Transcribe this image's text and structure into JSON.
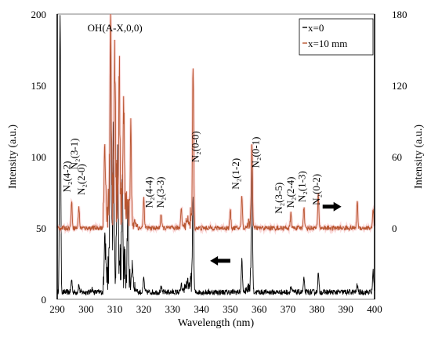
{
  "chart_data": {
    "type": "line",
    "xlabel": "Wavelength (nm)",
    "ylabel": "Intensity (a.u.)",
    "y2label": "Intensity (a.u.)",
    "xlim": [
      290,
      400
    ],
    "ylim": [
      0,
      200
    ],
    "y2lim": [
      -60,
      180
    ],
    "x_ticks": [
      290,
      300,
      310,
      320,
      330,
      340,
      350,
      360,
      370,
      380,
      390,
      400
    ],
    "y_ticks": [
      0,
      50,
      100,
      150,
      200
    ],
    "y2_ticks": [
      0,
      60,
      120,
      180
    ],
    "legend": {
      "position": "top-right",
      "entries": [
        "x=0",
        "x=10 mm"
      ]
    },
    "series": [
      {
        "name": "x=0",
        "axis": "left",
        "color": "#000000",
        "baseline": 5,
        "peaks": [
          {
            "x": 291.0,
            "y": 200
          },
          {
            "x": 295.0,
            "y": 14
          },
          {
            "x": 297.5,
            "y": 10
          },
          {
            "x": 302.0,
            "y": 8
          },
          {
            "x": 306.5,
            "y": 40
          },
          {
            "x": 308.5,
            "y": 182
          },
          {
            "x": 309.5,
            "y": 100
          },
          {
            "x": 311.0,
            "y": 90
          },
          {
            "x": 312.5,
            "y": 70
          },
          {
            "x": 314.5,
            "y": 55
          },
          {
            "x": 316.0,
            "y": 20
          },
          {
            "x": 320.0,
            "y": 15
          },
          {
            "x": 326.0,
            "y": 8
          },
          {
            "x": 333.0,
            "y": 10
          },
          {
            "x": 337.1,
            "y": 70
          },
          {
            "x": 354.0,
            "y": 28
          },
          {
            "x": 357.5,
            "y": 98
          },
          {
            "x": 371.0,
            "y": 9
          },
          {
            "x": 375.5,
            "y": 14
          },
          {
            "x": 380.5,
            "y": 18
          },
          {
            "x": 394.0,
            "y": 10
          },
          {
            "x": 399.5,
            "y": 20
          }
        ]
      },
      {
        "name": "x=10 mm",
        "axis": "right",
        "color": "#b8552f",
        "baseline": 0,
        "peaks": [
          {
            "x": 295.0,
            "y": 22
          },
          {
            "x": 297.5,
            "y": 18
          },
          {
            "x": 306.5,
            "y": 50
          },
          {
            "x": 308.5,
            "y": 165
          },
          {
            "x": 310.0,
            "y": 120
          },
          {
            "x": 311.5,
            "y": 105
          },
          {
            "x": 313.0,
            "y": 95
          },
          {
            "x": 315.5,
            "y": 80
          },
          {
            "x": 320.0,
            "y": 25
          },
          {
            "x": 326.0,
            "y": 12
          },
          {
            "x": 333.0,
            "y": 18
          },
          {
            "x": 337.1,
            "y": 133
          },
          {
            "x": 350.0,
            "y": 15
          },
          {
            "x": 354.0,
            "y": 28
          },
          {
            "x": 357.5,
            "y": 70
          },
          {
            "x": 371.0,
            "y": 12
          },
          {
            "x": 375.5,
            "y": 18
          },
          {
            "x": 380.5,
            "y": 28
          },
          {
            "x": 394.0,
            "y": 22
          },
          {
            "x": 399.5,
            "y": 15
          }
        ]
      }
    ],
    "annotations": [
      {
        "text": "OH(A-X,0,0)",
        "x": 310.0,
        "y": 188,
        "rotate": false
      },
      {
        "text": "N₂(4-2)",
        "x": 294.5,
        "y": 86,
        "rotate": true
      },
      {
        "text": "N₂(3-1)",
        "x": 297.0,
        "y": 102,
        "rotate": true
      },
      {
        "text": "N₂(2-0)",
        "x": 299.5,
        "y": 84,
        "rotate": true
      },
      {
        "text": "N₂(4-4)",
        "x": 323.0,
        "y": 75,
        "rotate": true
      },
      {
        "text": "N₂(3-3)",
        "x": 327.0,
        "y": 75,
        "rotate": true
      },
      {
        "text": "N₂(0-0)",
        "x": 339.0,
        "y": 107,
        "rotate": true
      },
      {
        "text": "N₂(1-2)",
        "x": 353.0,
        "y": 88,
        "rotate": true
      },
      {
        "text": "N₂(0-1)",
        "x": 360.0,
        "y": 103,
        "rotate": true
      },
      {
        "text": "N₂(3-5)",
        "x": 368.0,
        "y": 71,
        "rotate": true
      },
      {
        "text": "N₂(2-4)",
        "x": 372.0,
        "y": 75,
        "rotate": true
      },
      {
        "text": "N₂(1-3)",
        "x": 376.0,
        "y": 79,
        "rotate": true
      },
      {
        "text": "N₂(0-2)",
        "x": 381.0,
        "y": 77,
        "rotate": true
      }
    ],
    "arrows": [
      {
        "direction": "right",
        "x_from": 382.0,
        "x_to": 388.5,
        "y": 65
      },
      {
        "direction": "left",
        "x_from": 350.0,
        "x_to": 343.0,
        "y": 27
      }
    ]
  }
}
